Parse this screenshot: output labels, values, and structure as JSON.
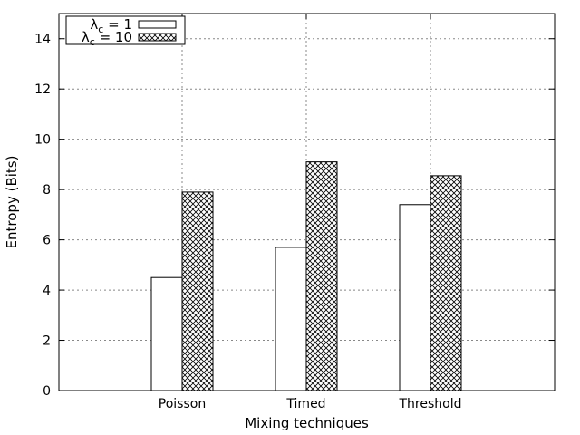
{
  "chart_data": {
    "type": "bar",
    "title": "",
    "xlabel": "Mixing techniques",
    "ylabel": "Entropy (Bits)",
    "ylim": [
      0,
      15
    ],
    "grid": true,
    "legend_position": "top-left",
    "categories": [
      "Poisson",
      "Timed",
      "Threshold"
    ],
    "series": [
      {
        "name": "λc = 1",
        "label_main": "λ",
        "label_sub": "c",
        "label_rest": " = 1",
        "values": [
          4.5,
          5.7,
          7.4
        ],
        "fill": "white"
      },
      {
        "name": "λc = 10",
        "label_main": "λ",
        "label_sub": "c",
        "label_rest": " = 10",
        "values": [
          7.9,
          9.1,
          8.55
        ],
        "fill": "crosshatch"
      }
    ],
    "yticks": [
      0,
      2,
      4,
      6,
      8,
      10,
      12,
      14
    ],
    "colors": {
      "axis": "#000000",
      "grid": "#888888",
      "bar_stroke": "#000000",
      "hatch": "#000000"
    }
  }
}
